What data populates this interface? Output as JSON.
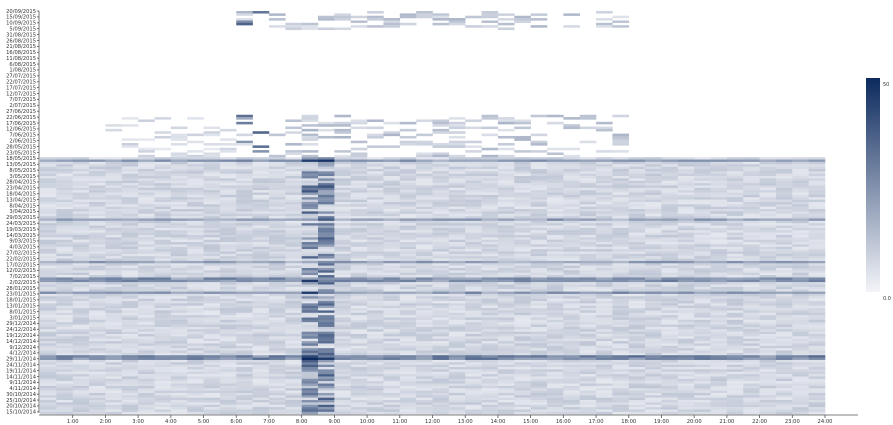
{
  "chart_data": {
    "type": "heatmap",
    "title": "",
    "xlabel": "",
    "ylabel": "",
    "x_categories": [
      "1:00",
      "2:00",
      "3:00",
      "4:00",
      "5:00",
      "6:00",
      "7:00",
      "8:00",
      "9:00",
      "10:00",
      "11:00",
      "12:00",
      "13:00",
      "14:00",
      "15:00",
      "16:00",
      "17:00",
      "18:00",
      "19:00",
      "20:00",
      "21:00",
      "22:00",
      "23:00",
      "24:00"
    ],
    "y_start_date": "2014-10-15",
    "y_end_date": "2015-09-20",
    "y_tick_labels": [
      "20/09/2015",
      "15/09/2015",
      "10/09/2015",
      "5/09/2015",
      "31/08/2015",
      "26/08/2015",
      "21/08/2015",
      "16/08/2015",
      "11/08/2015",
      "6/08/2015",
      "1/08/2015",
      "27/07/2015",
      "22/07/2015",
      "17/07/2015",
      "12/07/2015",
      "7/07/2015",
      "2/07/2015",
      "27/06/2015",
      "22/06/2015",
      "17/06/2015",
      "12/06/2015",
      "7/06/2015",
      "2/06/2015",
      "28/05/2015",
      "23/05/2015",
      "18/05/2015",
      "13/05/2015",
      "8/05/2015",
      "3/05/2015",
      "28/04/2015",
      "23/04/2015",
      "18/04/2015",
      "13/04/2015",
      "8/04/2015",
      "3/04/2015",
      "29/03/2015",
      "24/03/2015",
      "19/03/2015",
      "14/03/2015",
      "9/03/2015",
      "4/03/2015",
      "27/02/2015",
      "22/02/2015",
      "17/02/2015",
      "12/02/2015",
      "7/02/2015",
      "2/02/2015",
      "28/01/2015",
      "23/01/2015",
      "18/01/2015",
      "13/01/2015",
      "8/01/2015",
      "3/01/2015",
      "29/12/2014",
      "24/12/2014",
      "19/12/2014",
      "14/12/2014",
      "9/12/2014",
      "4/12/2014",
      "29/11/2014",
      "24/11/2014",
      "19/11/2014",
      "14/11/2014",
      "9/11/2014",
      "4/11/2014",
      "30/10/2014",
      "25/10/2014",
      "20/10/2014",
      "15/10/2014"
    ],
    "color_scale": {
      "min": 0.0,
      "max": 50,
      "low_color": "#f3f4f8",
      "high_color": "#0c2a5e"
    },
    "legend_labels": {
      "max": "50",
      "min": "0.0"
    },
    "legend_placement": "right",
    "regions": [
      {
        "from": "2015-09-06",
        "to": "2015-09-20",
        "hours": [
          6,
          18
        ],
        "density": 0.4,
        "level": 0.25,
        "hot_hours": [
          6
        ]
      },
      {
        "from": "2015-05-20",
        "to": "2015-06-25",
        "hours": [
          2,
          18
        ],
        "density": 0.35,
        "level": 0.25,
        "hot_hours": [
          6
        ]
      },
      {
        "from": "2014-10-15",
        "to": "2015-05-19",
        "hours": [
          0,
          24
        ],
        "density": 1.0,
        "level": 0.18,
        "hot_hours": [
          8
        ]
      }
    ],
    "dark_bands": [
      {
        "date": "2014-12-01",
        "level": 0.45
      },
      {
        "date": "2015-01-25",
        "level": 0.35
      },
      {
        "date": "2015-02-05",
        "level": 0.4
      },
      {
        "date": "2015-02-20",
        "level": 0.3
      },
      {
        "date": "2015-03-28",
        "level": 0.3
      },
      {
        "date": "2015-05-17",
        "level": 0.35
      }
    ]
  }
}
